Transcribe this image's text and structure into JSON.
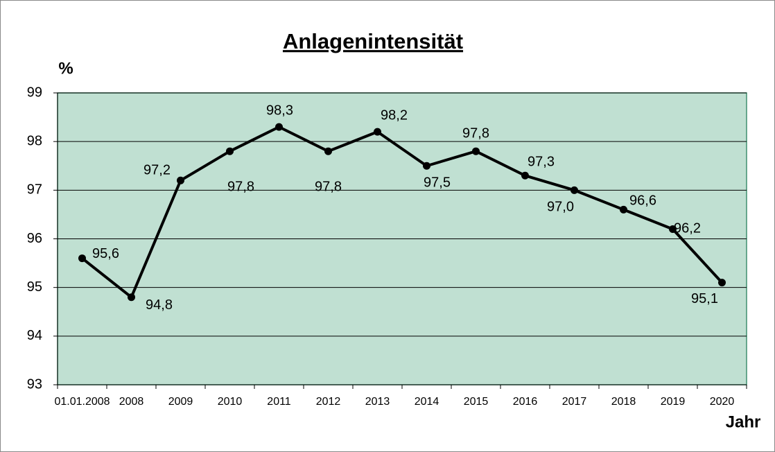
{
  "chart_data": {
    "type": "line",
    "title": "Anlagenintensität",
    "y_label": "%",
    "x_label": "Jahr",
    "categories": [
      "01.01.2008",
      "2008",
      "2009",
      "2010",
      "2011",
      "2012",
      "2013",
      "2014",
      "2015",
      "2016",
      "2017",
      "2018",
      "2019",
      "2020"
    ],
    "series": [
      {
        "name": "Anlagenintensität",
        "color": "#000000",
        "values": [
          95.6,
          94.8,
          97.2,
          97.8,
          98.3,
          97.8,
          98.2,
          97.5,
          97.8,
          97.3,
          97.0,
          96.6,
          96.2,
          95.1
        ],
        "value_labels": [
          "95,6",
          "94,8",
          "97,2",
          "97,8",
          "98,3",
          "97,8",
          "98,2",
          "97,5",
          "97,8",
          "97,3",
          "97,0",
          "96,6",
          "96,2",
          "95,1"
        ]
      }
    ],
    "ylim": [
      93,
      99
    ],
    "yticks": [
      93,
      94,
      95,
      96,
      97,
      98,
      99
    ],
    "grid": true,
    "plot_background": "#c0e0d2"
  }
}
